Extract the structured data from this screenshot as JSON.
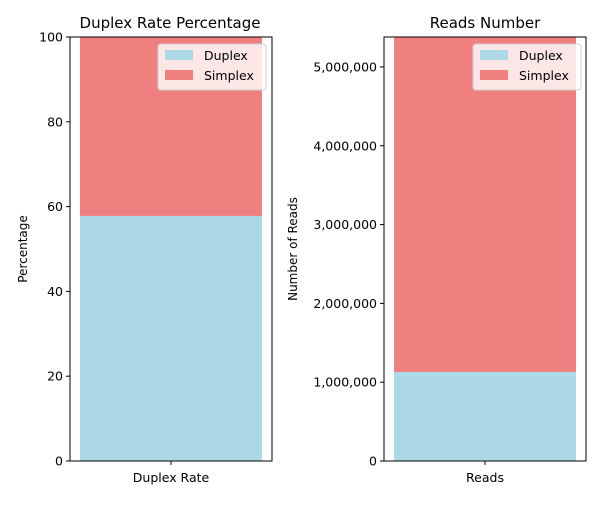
{
  "chart_data": [
    {
      "type": "bar",
      "stacked": true,
      "title": "Duplex Rate Percentage",
      "xlabel": "",
      "ylabel": "Percentage",
      "categories": [
        "Duplex Rate"
      ],
      "ylim": [
        0,
        100
      ],
      "yticks": [
        0,
        20,
        40,
        60,
        80,
        100
      ],
      "ytick_labels": [
        "0",
        "20",
        "40",
        "60",
        "80",
        "100"
      ],
      "series": [
        {
          "name": "Duplex",
          "values": [
            57.8
          ],
          "color": "#add8e6"
        },
        {
          "name": "Simplex",
          "values": [
            42.2
          ],
          "color": "#f08080"
        }
      ],
      "legend": {
        "position": "top-right",
        "entries": [
          "Duplex",
          "Simplex"
        ]
      },
      "grid": false
    },
    {
      "type": "bar",
      "stacked": true,
      "title": "Reads Number",
      "xlabel": "",
      "ylabel": "Number of Reads",
      "categories": [
        "Reads"
      ],
      "ylim": [
        0,
        5380000
      ],
      "yticks": [
        0,
        1000000,
        2000000,
        3000000,
        4000000,
        5000000
      ],
      "ytick_labels": [
        "0",
        "1,000,000",
        "2,000,000",
        "3,000,000",
        "4,000,000",
        "5,000,000"
      ],
      "series": [
        {
          "name": "Duplex",
          "values": [
            1130000
          ],
          "color": "#add8e6"
        },
        {
          "name": "Simplex",
          "values": [
            4250000
          ],
          "color": "#f08080"
        }
      ],
      "legend": {
        "position": "top-right",
        "entries": [
          "Duplex",
          "Simplex"
        ]
      },
      "grid": false
    }
  ]
}
